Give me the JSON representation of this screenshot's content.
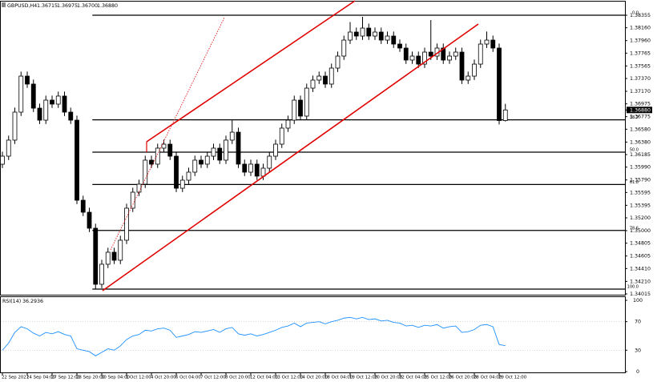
{
  "chart_data": {
    "type": "candlestick",
    "title": "GBPUSD,H4",
    "last_bar_labels": {
      "open": "1.36715",
      "high": "1.36975",
      "low": "1.36700",
      "close": "1.36880"
    },
    "categories": [
      "22 Sep 2021",
      null,
      null,
      null,
      "24 Sep 04:00",
      null,
      null,
      null,
      "27 Sep 12:00",
      null,
      null,
      null,
      "28 Sep 20:00",
      null,
      null,
      null,
      "30 Sep 04:00",
      null,
      null,
      null,
      "1 Oct 12:00",
      null,
      null,
      null,
      "4 Oct 20:00",
      null,
      null,
      null,
      "6 Oct 04:00",
      null,
      null,
      null,
      "7 Oct 12:00",
      null,
      null,
      null,
      "8 Oct 20:00",
      null,
      null,
      null,
      "12 Oct 04:00",
      null,
      null,
      null,
      "13 Oct 12:00",
      null,
      null,
      null,
      "14 Oct 20:00",
      null,
      null,
      null,
      "18 Oct 04:00",
      null,
      null,
      null,
      "19 Oct 12:00",
      null,
      null,
      null,
      "20 Oct 20:00",
      null,
      null,
      null,
      "22 Oct 04:00",
      null,
      null,
      null,
      "25 Oct 12:00",
      null,
      null,
      null,
      "26 Oct 20:00",
      null,
      null,
      null,
      "28 Oct 04:00",
      null,
      null,
      null,
      "29 Oct 12:00",
      null
    ],
    "open": [
      1.36035,
      1.3616,
      1.3641,
      1.36846,
      1.37407,
      1.37283,
      1.36908,
      1.36721,
      1.37033,
      1.36971,
      1.37096,
      1.36846,
      1.36721,
      1.35474,
      1.35287,
      1.35038,
      1.34165,
      1.34477,
      1.34664,
      1.34539,
      1.34851,
      1.3535,
      1.35599,
      1.35724,
      1.36098,
      1.36036,
      1.36285,
      1.36347,
      1.3616,
      1.35661,
      1.35786,
      1.35911,
      1.36098,
      1.36036,
      1.3616,
      1.36285,
      1.36098,
      1.3641,
      1.36534,
      1.36036,
      1.35911,
      1.36036,
      1.35849,
      1.35973,
      1.3616,
      1.36347,
      1.36597,
      1.36721,
      1.37033,
      1.36784,
      1.3722,
      1.37345,
      1.37407,
      1.37283,
      1.37532,
      1.37719,
      1.37968,
      1.38093,
      1.38031,
      1.38155,
      1.38031,
      1.38093,
      1.37968,
      1.38031,
      1.37906,
      1.37844,
      1.37657,
      1.37719,
      1.37594,
      1.37781,
      1.37719,
      1.37844,
      1.37657,
      1.37719,
      1.37781,
      1.37345,
      1.37407,
      1.37594,
      1.37906,
      1.37968,
      1.37844,
      1.36715
    ],
    "high": [
      1.3623,
      1.3648,
      1.36916,
      1.37477,
      1.37477,
      1.37353,
      1.36978,
      1.37103,
      1.37103,
      1.37166,
      1.37166,
      1.36916,
      1.36791,
      1.35544,
      1.35357,
      1.35108,
      1.34547,
      1.34734,
      1.34734,
      1.34921,
      1.3542,
      1.35669,
      1.35794,
      1.36168,
      1.36168,
      1.36355,
      1.36417,
      1.36417,
      1.3623,
      1.35856,
      1.35981,
      1.36168,
      1.36168,
      1.3623,
      1.36355,
      1.36355,
      1.3648,
      1.3672,
      1.36604,
      1.36106,
      1.36106,
      1.36106,
      1.36043,
      1.3623,
      1.36417,
      1.36667,
      1.36791,
      1.37103,
      1.37103,
      1.3729,
      1.37415,
      1.37477,
      1.37477,
      1.37602,
      1.37789,
      1.38038,
      1.3825,
      1.38163,
      1.3833,
      1.38225,
      1.38163,
      1.38163,
      1.38101,
      1.38101,
      1.37976,
      1.37914,
      1.37789,
      1.37789,
      1.37851,
      1.3828,
      1.37914,
      1.37914,
      1.37789,
      1.37851,
      1.37851,
      1.37477,
      1.37664,
      1.37976,
      1.38101,
      1.38038,
      1.37914,
      1.36975
    ],
    "low": [
      1.35975,
      1.361,
      1.3635,
      1.36786,
      1.37223,
      1.36848,
      1.36661,
      1.36661,
      1.36911,
      1.36911,
      1.36786,
      1.36661,
      1.35414,
      1.35227,
      1.34978,
      1.3409,
      1.34105,
      1.34417,
      1.34479,
      1.34479,
      1.34791,
      1.3529,
      1.35539,
      1.35664,
      1.35976,
      1.35976,
      1.36225,
      1.361,
      1.35601,
      1.35601,
      1.35726,
      1.35851,
      1.35976,
      1.35976,
      1.361,
      1.36038,
      1.36038,
      1.3635,
      1.35976,
      1.35851,
      1.35851,
      1.35789,
      1.35789,
      1.35913,
      1.361,
      1.36287,
      1.36537,
      1.36661,
      1.36724,
      1.36724,
      1.3716,
      1.37285,
      1.37223,
      1.37223,
      1.37472,
      1.37659,
      1.37908,
      1.37971,
      1.37971,
      1.37971,
      1.37971,
      1.37908,
      1.37908,
      1.37846,
      1.37784,
      1.37597,
      1.37597,
      1.37534,
      1.37534,
      1.37659,
      1.37659,
      1.37597,
      1.37597,
      1.37659,
      1.37285,
      1.37285,
      1.37347,
      1.37534,
      1.37846,
      1.37784,
      1.36655,
      1.367
    ],
    "close": [
      1.3616,
      1.3641,
      1.36846,
      1.37407,
      1.37283,
      1.36908,
      1.36721,
      1.37033,
      1.36971,
      1.37096,
      1.36846,
      1.36721,
      1.35474,
      1.35287,
      1.35038,
      1.34165,
      1.34477,
      1.34664,
      1.34539,
      1.34851,
      1.3535,
      1.35599,
      1.35724,
      1.36098,
      1.36036,
      1.36285,
      1.36347,
      1.3616,
      1.35661,
      1.35786,
      1.35911,
      1.36098,
      1.36036,
      1.3616,
      1.36285,
      1.36098,
      1.3641,
      1.36534,
      1.36036,
      1.35911,
      1.36036,
      1.35849,
      1.35973,
      1.3616,
      1.36347,
      1.36597,
      1.36721,
      1.37033,
      1.36784,
      1.3722,
      1.37345,
      1.37407,
      1.37283,
      1.37532,
      1.37719,
      1.37968,
      1.38093,
      1.38031,
      1.38155,
      1.38031,
      1.38093,
      1.37968,
      1.38031,
      1.37906,
      1.37844,
      1.37657,
      1.37719,
      1.37594,
      1.37781,
      1.37719,
      1.37844,
      1.37657,
      1.37719,
      1.37781,
      1.37345,
      1.37407,
      1.37594,
      1.37906,
      1.37968,
      1.37844,
      1.36715,
      1.3688
    ],
    "up_color": "#ffffff",
    "down_color": "#000000",
    "ylim": [
      1.34015,
      1.3853
    ],
    "yticks": [
      1.38355,
      {
        "value": 1.3816,
        "label": "1.38160"
      },
      {
        "value": 1.3796,
        "label": "1.37960"
      },
      1.37765,
      1.37565,
      {
        "value": 1.3737,
        "label": "1.37370"
      },
      {
        "value": 1.3717,
        "label": "1.37170"
      },
      1.36975,
      1.36775,
      {
        "value": 1.3658,
        "label": "1.36580"
      },
      {
        "value": 1.3638,
        "label": "1.36380"
      },
      1.36185,
      {
        "value": 1.3599,
        "label": "1.35990"
      },
      {
        "value": 1.3579,
        "label": "1.35790"
      },
      1.35595,
      1.35395,
      {
        "value": 1.352,
        "label": "1.35200"
      },
      {
        "value": 1.35,
        "label": "1.35000"
      },
      1.34805,
      1.34605,
      {
        "value": 1.3441,
        "label": "1.34410"
      },
      {
        "value": 1.3421,
        "label": "1.34210"
      },
      1.34015
    ],
    "fib_levels": [
      {
        "label": "0.0",
        "value": 1.38355
      },
      {
        "label": "38.2",
        "value": 1.36726
      },
      {
        "label": "50.0",
        "value": 1.36223
      },
      {
        "label": "61.8",
        "value": 1.35719
      },
      {
        "label": "78.6",
        "value": 1.35003
      },
      {
        "label": "100.0",
        "value": 1.3409
      }
    ],
    "rsi": {
      "label": "RSI(14)",
      "color": "#1e90ff",
      "ylim": [
        0,
        100
      ],
      "yticks": [
        100,
        70,
        30,
        0
      ],
      "values": [
        30,
        40,
        55,
        63,
        60,
        54,
        50,
        55,
        53,
        56,
        52,
        50,
        32,
        30,
        28,
        22,
        27,
        32,
        30,
        36,
        45,
        50,
        52,
        58,
        57,
        60,
        61,
        58,
        48,
        50,
        52,
        56,
        55,
        57,
        59,
        55,
        60,
        62,
        53,
        51,
        53,
        50,
        52,
        55,
        58,
        62,
        64,
        68,
        63,
        68,
        69,
        70,
        67,
        70,
        72,
        75,
        76,
        74,
        76,
        73,
        74,
        71,
        72,
        69,
        68,
        64,
        65,
        62,
        65,
        64,
        66,
        61,
        63,
        64,
        55,
        56,
        59,
        65,
        66,
        63,
        38,
        36.2936
      ]
    }
  }
}
